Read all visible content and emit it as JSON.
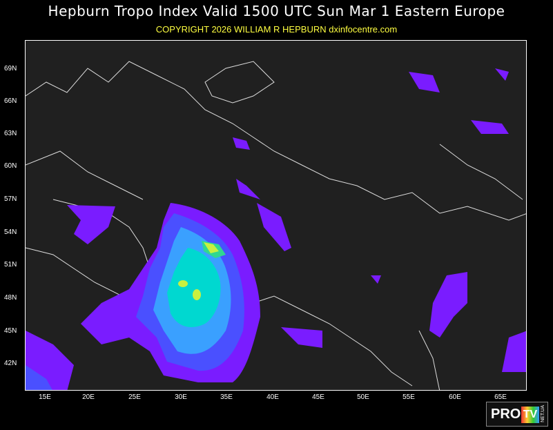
{
  "title": "Hepburn Tropo Index Valid 1500 UTC Sun Mar 1 Eastern Europe",
  "copyright": "COPYRIGHT 2026   WILLIAM R HEPBURN   dxinfocentre.com",
  "lat_labels": [
    "69N",
    "66N",
    "63N",
    "60N",
    "57N",
    "54N",
    "51N",
    "48N",
    "45N",
    "42N"
  ],
  "lon_labels": [
    "15E",
    "20E",
    "25E",
    "30E",
    "35E",
    "40E",
    "45E",
    "50E",
    "55E",
    "60E",
    "65E"
  ],
  "colors": {
    "level1": "#7a1cff",
    "level2": "#4a50ff",
    "level3": "#3aa0ff",
    "level4": "#00d8d0",
    "level5": "#30d890",
    "level6": "#c8f040",
    "land_outline": "#ffffff",
    "background": "#202020"
  },
  "logo": {
    "text": "PRO TV NET.UA",
    "pro": "PRO",
    "tv": "TV",
    "net": "NET.UA"
  }
}
